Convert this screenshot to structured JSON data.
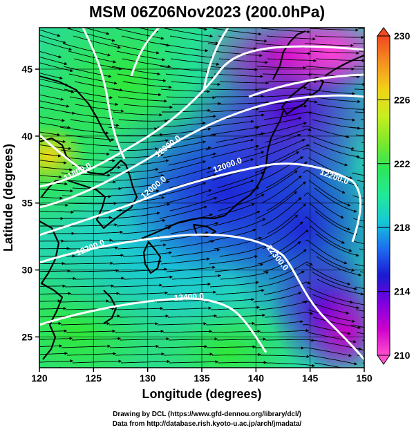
{
  "title": "MSM 06Z06Nov2023 (200.0hPa)",
  "x_axis": {
    "label": "Longitude (degrees)",
    "ticks": [
      "120",
      "125",
      "130",
      "135",
      "140",
      "145",
      "150"
    ]
  },
  "y_axis": {
    "label": "Latitude  (degrees)",
    "ticks": [
      "25",
      "30",
      "35",
      "40",
      "45"
    ]
  },
  "colorbar": {
    "ticks": [
      "210",
      "214",
      "218",
      "222",
      "226",
      "230"
    ],
    "range": [
      210,
      230
    ],
    "stops": [
      "#ff4fd0",
      "#cc00cc",
      "#7a00e0",
      "#1a1ad0",
      "#1c6cf0",
      "#16c6d8",
      "#22e89a",
      "#2ee65a",
      "#7ce82a",
      "#c8ee20",
      "#f2d218",
      "#f59020",
      "#f04820"
    ]
  },
  "contours": [
    {
      "label": "11800.0"
    },
    {
      "label": "12000.0"
    },
    {
      "label": "12000.0"
    },
    {
      "label": "12000.0"
    },
    {
      "label": "12200.0"
    },
    {
      "label": "12200.0"
    },
    {
      "label": "12300.0"
    },
    {
      "label": "12400.0"
    }
  ],
  "credits": {
    "line1": "Drawing by DCL (https://www.gfd-dennou.org/library/dcl/)",
    "line2": "Data from http://database.rish.kyoto-u.ac.jp/arch/jmadata/"
  }
}
